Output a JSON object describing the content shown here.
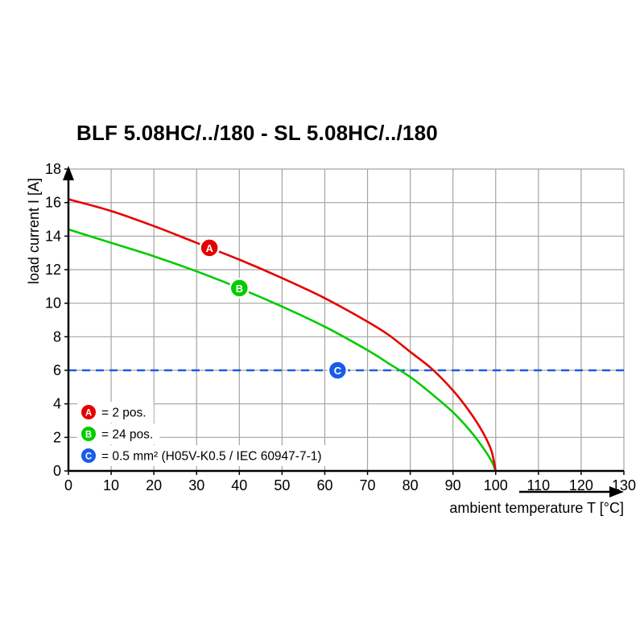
{
  "chart_data": {
    "type": "line",
    "title": "BLF 5.08HC/../180 - SL 5.08HC/../180",
    "xlabel": "ambient temperature T [°C]",
    "ylabel": "load current I [A]",
    "xlim": [
      0,
      130
    ],
    "ylim": [
      0,
      18
    ],
    "xtick_step": 10,
    "ytick_step": 2,
    "grid": true,
    "legend_position": "bottom-left-inside",
    "colors": {
      "grid": "#a3a3a3",
      "axis": "#000000",
      "background": "#ffffff"
    },
    "series": [
      {
        "id": "A",
        "legend": "= 2 pos.",
        "color": "#e60000",
        "style": "solid",
        "marker": {
          "x": 33,
          "y": 13.3
        },
        "points": [
          [
            0,
            16.2
          ],
          [
            10,
            15.5
          ],
          [
            20,
            14.6
          ],
          [
            30,
            13.6
          ],
          [
            40,
            12.6
          ],
          [
            50,
            11.5
          ],
          [
            60,
            10.3
          ],
          [
            70,
            8.9
          ],
          [
            75,
            8.1
          ],
          [
            80,
            7.1
          ],
          [
            85,
            6.1
          ],
          [
            90,
            4.8
          ],
          [
            94,
            3.5
          ],
          [
            97,
            2.3
          ],
          [
            99,
            1.2
          ],
          [
            100,
            0
          ]
        ]
      },
      {
        "id": "B",
        "legend": "= 24 pos.",
        "color": "#00cc00",
        "style": "solid",
        "marker": {
          "x": 40,
          "y": 10.9
        },
        "points": [
          [
            0,
            14.4
          ],
          [
            10,
            13.6
          ],
          [
            20,
            12.8
          ],
          [
            30,
            11.9
          ],
          [
            40,
            10.9
          ],
          [
            50,
            9.8
          ],
          [
            60,
            8.6
          ],
          [
            70,
            7.2
          ],
          [
            75,
            6.4
          ],
          [
            80,
            5.6
          ],
          [
            85,
            4.6
          ],
          [
            90,
            3.5
          ],
          [
            94,
            2.4
          ],
          [
            97,
            1.4
          ],
          [
            99,
            0.6
          ],
          [
            100,
            0
          ]
        ]
      },
      {
        "id": "C",
        "legend": "= 0.5 mm² (H05V-K0.5 / IEC 60947-7-1)",
        "color": "#1a5ce8",
        "style": "dashed",
        "marker": {
          "x": 63,
          "y": 6
        },
        "points": [
          [
            0,
            6
          ],
          [
            130,
            6
          ]
        ]
      }
    ]
  }
}
